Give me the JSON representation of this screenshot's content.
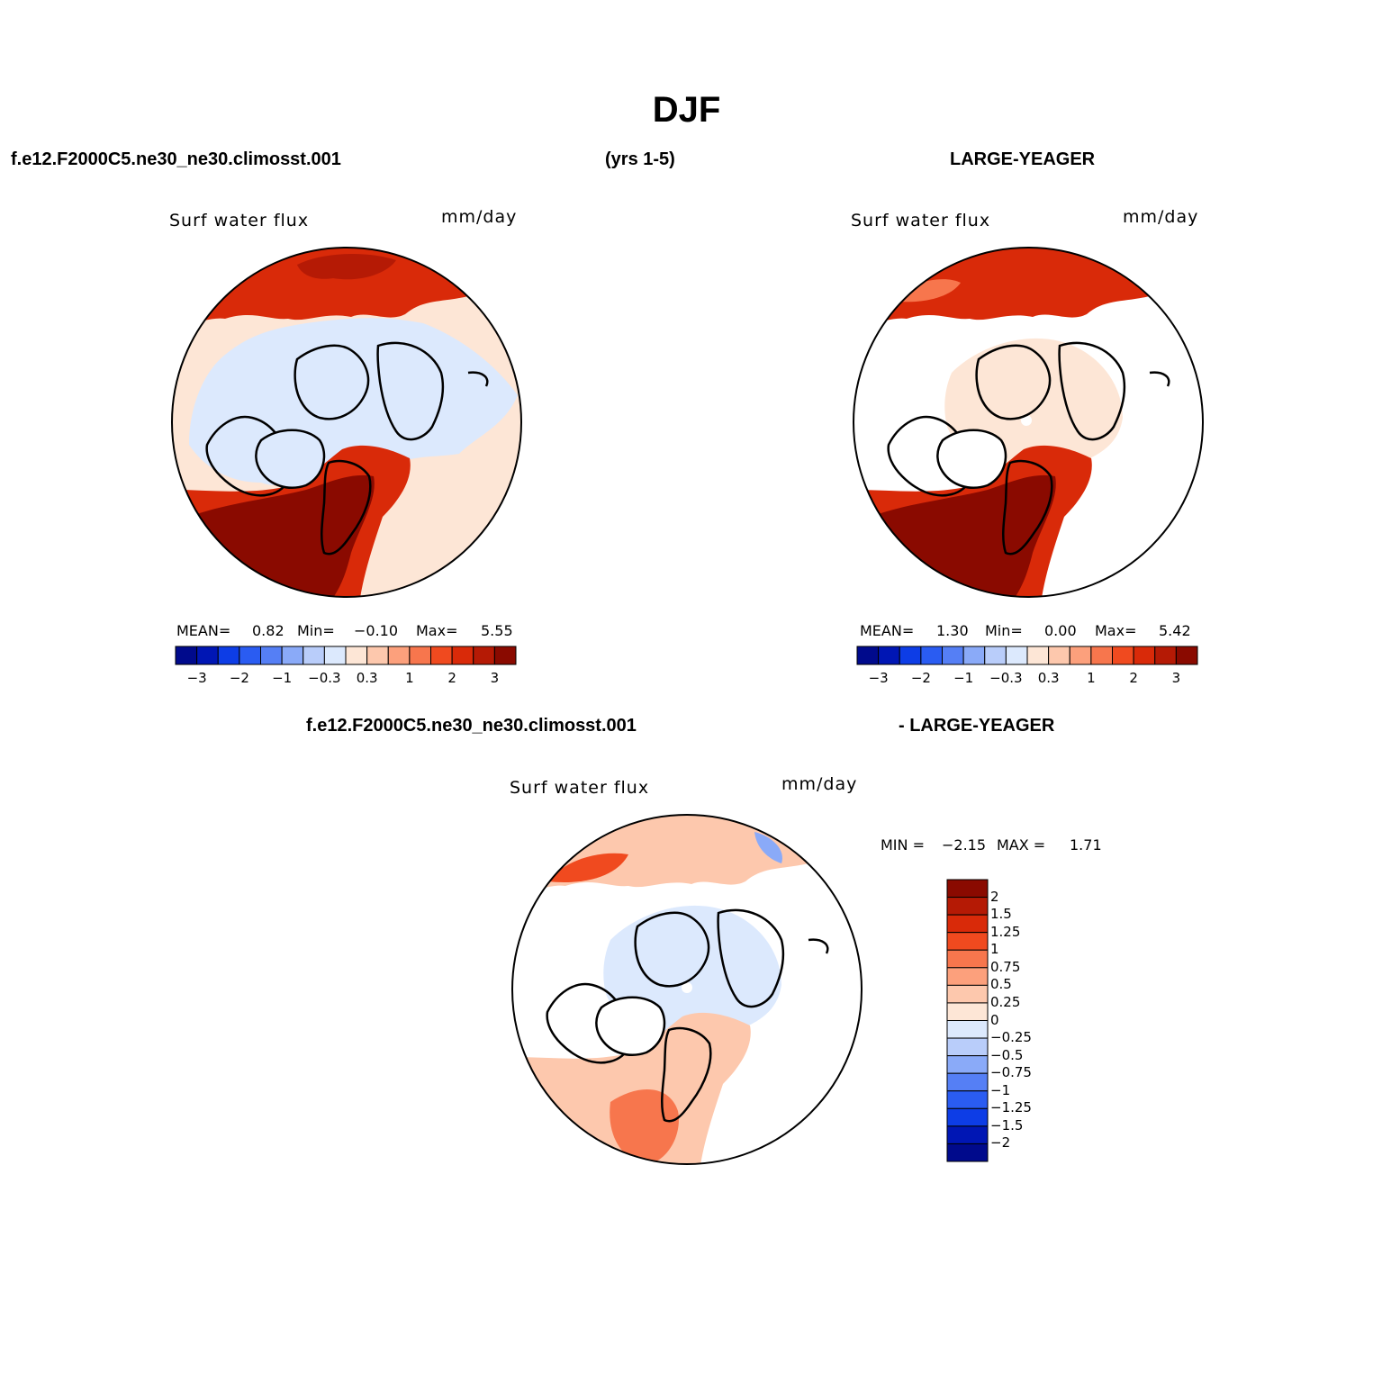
{
  "title": "DJF",
  "header": {
    "case_name": "f.e12.F2000C5.ne30_ne30.climosst.001",
    "years": "(yrs 1-5)",
    "obs_name": "LARGE-YEAGER"
  },
  "diff_header": {
    "left": "f.e12.F2000C5.ne30_ne30.climosst.001",
    "right": "- LARGE-YEAGER"
  },
  "panels": [
    {
      "variable": "Surf water flux",
      "units": "mm/day",
      "mean_label": "MEAN=",
      "mean": "0.82",
      "min_label": "Min=",
      "min": "−0.10",
      "max_label": "Max=",
      "max": "5.55"
    },
    {
      "variable": "Surf water flux",
      "units": "mm/day",
      "mean_label": "MEAN=",
      "mean": "1.30",
      "min_label": "Min=",
      "min": "0.00",
      "max_label": "Max=",
      "max": "5.42"
    },
    {
      "variable": "Surf water flux",
      "units": "mm/day",
      "min_label": "MIN =",
      "min": "−2.15",
      "max_label": "MAX =",
      "max": "1.71"
    }
  ],
  "colorbar_horizontal": {
    "colors": [
      "#000a8c",
      "#0016b4",
      "#0d3de6",
      "#2a5cf2",
      "#557ff5",
      "#8aaaf8",
      "#b9cdfa",
      "#dce9fd",
      "#fde6d6",
      "#fdc8ad",
      "#fca07c",
      "#f7764d",
      "#f04a1f",
      "#d92a09",
      "#b51a05",
      "#8a0a00"
    ],
    "tick_labels": [
      "−3",
      "−2",
      "−1",
      "−0.3",
      "0.3",
      "1",
      "2",
      "3"
    ],
    "tick_boundaries": [
      1,
      3,
      5,
      7,
      9,
      11,
      13,
      15
    ]
  },
  "colorbar_vertical": {
    "colors": [
      "#8a0a00",
      "#b51a05",
      "#d92a09",
      "#f04a1f",
      "#f7764d",
      "#fca07c",
      "#fdc8ad",
      "#fde6d6",
      "#dce9fd",
      "#b9cdfa",
      "#8aaaf8",
      "#557ff5",
      "#2a5cf2",
      "#0d3de6",
      "#0016b4",
      "#000a8c"
    ],
    "tick_labels": [
      "2",
      "1.5",
      "1.25",
      "1",
      "0.75",
      "0.5",
      "0.25",
      "0",
      "−0.25",
      "−0.5",
      "−0.75",
      "−1",
      "−1.25",
      "−1.5",
      "−2"
    ]
  }
}
